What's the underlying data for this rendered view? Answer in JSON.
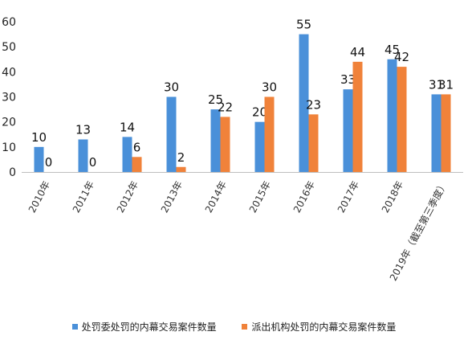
{
  "colors": {
    "series1": "#4A90D9",
    "series2": "#F0823A",
    "axis": "#bfbfbf"
  },
  "chart_data": {
    "type": "bar",
    "categories": [
      "2010年",
      "2011年",
      "2012年",
      "2013年",
      "2014年",
      "2015年",
      "2016年",
      "2017年",
      "2018年",
      "2019年（截至第三季度）"
    ],
    "series": [
      {
        "name": "处罚委处罚的内幕交易案件数量",
        "values": [
          10,
          13,
          14,
          30,
          25,
          20,
          55,
          33,
          45,
          31
        ]
      },
      {
        "name": "派出机构处罚的内幕交易案件数量",
        "values": [
          0,
          0,
          6,
          2,
          22,
          30,
          23,
          44,
          42,
          31
        ]
      }
    ],
    "data_labels": [
      [
        "10",
        "13",
        "14",
        "30",
        "25",
        "20",
        "55",
        "33",
        "45",
        "31"
      ],
      [
        "0",
        "0",
        "6",
        "2",
        "22",
        "30",
        "23",
        "44",
        "42",
        "31"
      ]
    ],
    "yticks": [
      "0",
      "10",
      "20",
      "30",
      "40",
      "50",
      "60"
    ],
    "ylim": [
      0,
      60
    ],
    "grid": false,
    "legend_position": "bottom",
    "title": "",
    "xlabel": "",
    "ylabel": ""
  }
}
